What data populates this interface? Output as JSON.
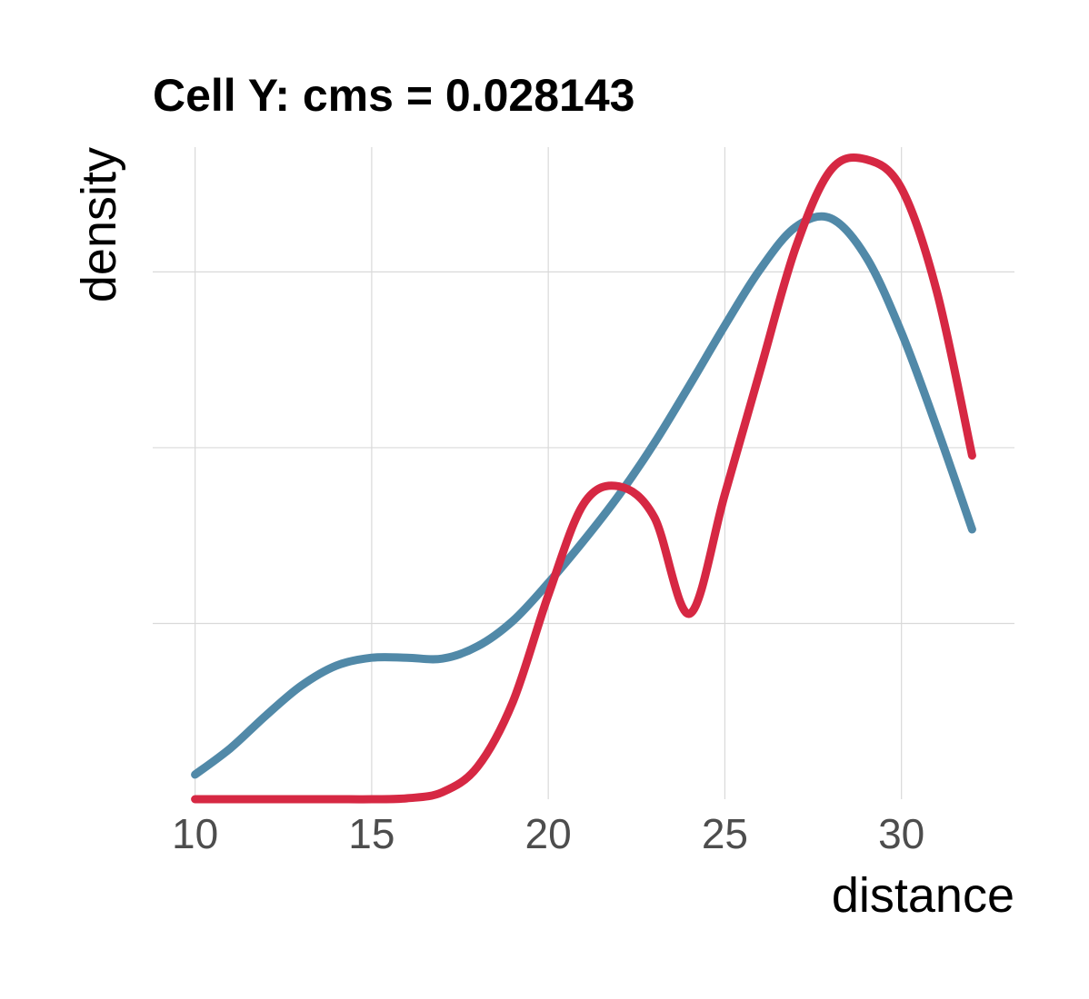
{
  "chart_data": {
    "type": "line",
    "title": "Cell Y: cms = 0.028143",
    "xlabel": "distance",
    "ylabel": "density",
    "xlim": [
      8.8,
      33.2
    ],
    "ylim": [
      0,
      0.0742
    ],
    "x_ticks": [
      "10",
      "15",
      "20",
      "25",
      "30"
    ],
    "x_tick_values": [
      10,
      15,
      20,
      25,
      30
    ],
    "y_gridlines": [
      0.02,
      0.04,
      0.06
    ],
    "y_tick_labels_shown": false,
    "grid": true,
    "legend": "none",
    "series": [
      {
        "color": "#5189a8",
        "x": [
          10,
          11,
          12,
          13,
          14,
          15,
          16,
          17,
          18,
          19,
          20,
          21,
          22,
          23,
          24,
          25,
          26,
          27,
          28,
          29,
          30,
          31,
          32
        ],
        "y": [
          0.0028,
          0.0058,
          0.0095,
          0.0129,
          0.0152,
          0.0161,
          0.0161,
          0.016,
          0.0174,
          0.0203,
          0.0246,
          0.0294,
          0.0346,
          0.0405,
          0.0471,
          0.0539,
          0.0603,
          0.0651,
          0.0661,
          0.0617,
          0.0531,
          0.0423,
          0.0307
        ]
      },
      {
        "color": "#d62843",
        "x": [
          10,
          11,
          12,
          13,
          14,
          15,
          16,
          17,
          18,
          19,
          20,
          21,
          22,
          23,
          24,
          25,
          26,
          27,
          28,
          29,
          30,
          31,
          32
        ],
        "y": [
          0,
          0,
          0,
          0,
          0,
          0,
          0.0001,
          0.0008,
          0.0037,
          0.0111,
          0.0232,
          0.0336,
          0.0356,
          0.0321,
          0.0211,
          0.0347,
          0.0488,
          0.0627,
          0.0716,
          0.0728,
          0.0695,
          0.0578,
          0.0391
        ]
      }
    ]
  }
}
